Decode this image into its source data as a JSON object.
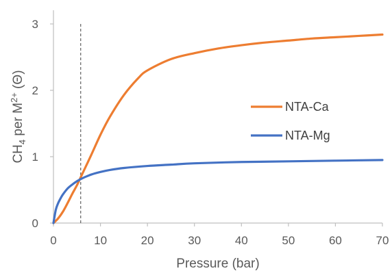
{
  "chart_data": {
    "type": "line",
    "title": "",
    "xlabel": "Pressure (bar)",
    "ylabel": {
      "prefix": "CH",
      "sub": "4",
      "mid": " per M",
      "sup": "2+",
      "suffix": " (Θ)"
    },
    "xlim": [
      0,
      70
    ],
    "ylim": [
      0,
      3
    ],
    "xticks": [
      0,
      10,
      20,
      30,
      40,
      50,
      60,
      70
    ],
    "yticks": [
      0,
      1,
      2,
      3
    ],
    "grid": false,
    "legend_position": "right",
    "reference_line": {
      "x": 5.8,
      "style": "dashed"
    },
    "series": [
      {
        "name": "NTA-Ca",
        "color": "#ED7D31",
        "x": [
          0,
          1,
          2,
          3,
          4,
          5,
          6,
          8,
          10,
          12,
          15,
          18,
          20,
          25,
          30,
          35,
          40,
          45,
          50,
          55,
          60,
          65,
          70
        ],
        "y": [
          0,
          0.07,
          0.17,
          0.3,
          0.44,
          0.57,
          0.72,
          1.02,
          1.33,
          1.6,
          1.93,
          2.18,
          2.3,
          2.47,
          2.56,
          2.63,
          2.68,
          2.72,
          2.75,
          2.78,
          2.8,
          2.82,
          2.84
        ]
      },
      {
        "name": "NTA-Mg",
        "color": "#4472C4",
        "x": [
          0,
          0.5,
          1,
          1.5,
          2,
          3,
          4,
          5,
          6,
          8,
          10,
          12,
          15,
          20,
          25,
          30,
          40,
          50,
          60,
          70
        ],
        "y": [
          0,
          0.2,
          0.3,
          0.37,
          0.43,
          0.52,
          0.58,
          0.63,
          0.67,
          0.73,
          0.77,
          0.8,
          0.83,
          0.86,
          0.88,
          0.9,
          0.92,
          0.93,
          0.94,
          0.95
        ]
      }
    ]
  }
}
